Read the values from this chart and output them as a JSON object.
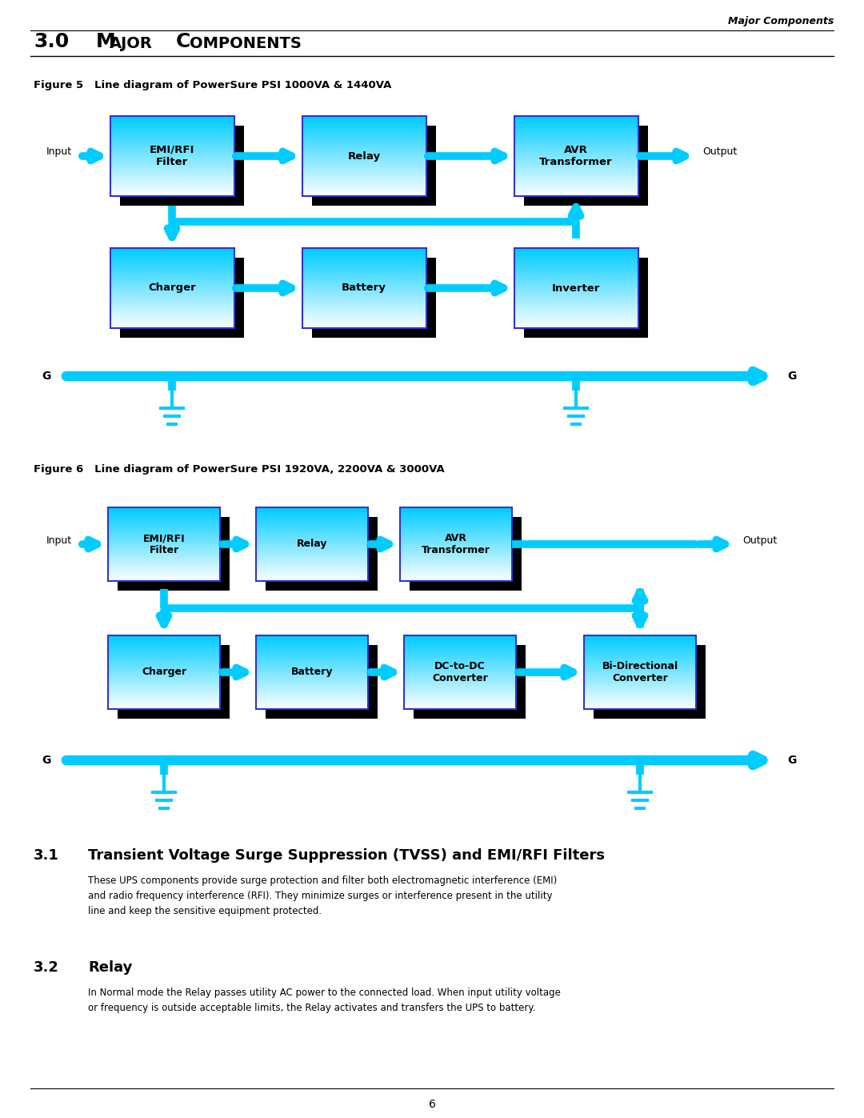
{
  "page_title": "Major Components",
  "section_heading_num": "3.0",
  "section_heading_text": "Major Components",
  "fig5_title": "Figure 5   Line diagram of PowerSure PSI 1000VA & 1440VA",
  "fig6_title": "Figure 6   Line diagram of PowerSure PSI 1920VA, 2200VA & 3000VA",
  "section31_heading": "3.1",
  "section31_heading_text": "Transient Voltage Surge Suppression (TVSS) and EMI/RFI Filters",
  "section31_text": "These UPS components provide surge protection and filter both electromagnetic interference (EMI)\nand radio frequency interference (RFI). They minimize surges or interference present in the utility\nline and keep the sensitive equipment protected.",
  "section32_heading": "3.2",
  "section32_heading_text": "Relay",
  "section32_text": "In Normal mode the Relay passes utility AC power to the connected load. When input utility voltage\nor frequency is outside acceptable limits, the Relay activates and transfers the UPS to battery.",
  "footer_text": "6",
  "arrow_color": "#00CCFF",
  "box_border": "#3333CC",
  "box_shadow": "#000000",
  "bg_color": "#FFFFFF"
}
